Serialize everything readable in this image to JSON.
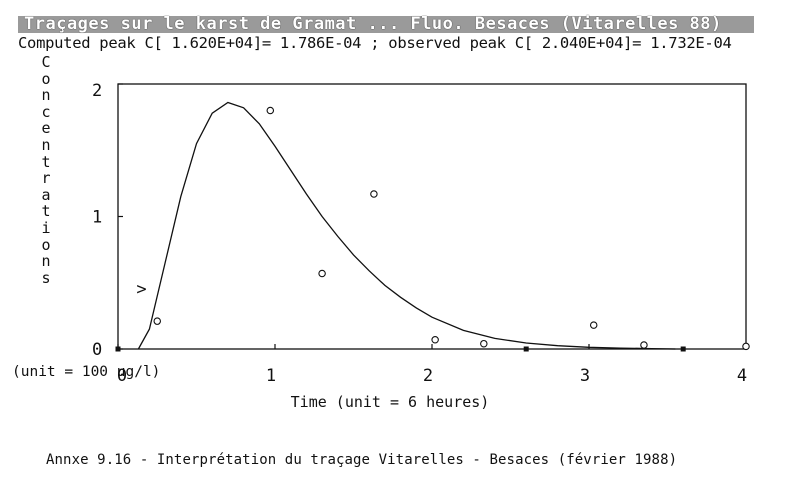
{
  "header": {
    "title": "Traçages sur le karst de Gramat ... Fluo. Besaces (Vitarelles 88)",
    "subtitle": "Computed peak C[ 1.620E+04]= 1.786E-04 ; observed peak C[ 2.040E+04]= 1.732E-04"
  },
  "chart_data": {
    "type": "scatter",
    "xlabel": "Time (unit = 6 heures)",
    "ylabel": "Concentrations",
    "ylabel_unit": "(unit = 100 ug/l)",
    "xlim": [
      0,
      4
    ],
    "ylim": [
      0,
      2
    ],
    "x_ticks": [
      0,
      1,
      2,
      3,
      4
    ],
    "y_ticks": [
      0,
      1,
      2
    ],
    "grid": false,
    "series": [
      {
        "kind": "observed",
        "marker": "circle",
        "points": [
          [
            0.25,
            0.21
          ],
          [
            0.97,
            1.8
          ],
          [
            1.3,
            0.57
          ],
          [
            1.63,
            1.17
          ],
          [
            2.02,
            0.07
          ],
          [
            2.33,
            0.04
          ],
          [
            3.03,
            0.18
          ],
          [
            3.35,
            0.03
          ],
          [
            4.0,
            0.02
          ]
        ]
      },
      {
        "kind": "computed",
        "line": "solid",
        "points": [
          [
            0.13,
            0.0
          ],
          [
            0.2,
            0.15
          ],
          [
            0.3,
            0.65
          ],
          [
            0.4,
            1.15
          ],
          [
            0.5,
            1.55
          ],
          [
            0.6,
            1.78
          ],
          [
            0.7,
            1.86
          ],
          [
            0.8,
            1.82
          ],
          [
            0.9,
            1.7
          ],
          [
            1.0,
            1.53
          ],
          [
            1.1,
            1.35
          ],
          [
            1.2,
            1.17
          ],
          [
            1.3,
            1.0
          ],
          [
            1.4,
            0.85
          ],
          [
            1.5,
            0.71
          ],
          [
            1.6,
            0.59
          ],
          [
            1.7,
            0.48
          ],
          [
            1.8,
            0.39
          ],
          [
            1.9,
            0.31
          ],
          [
            2.0,
            0.24
          ],
          [
            2.2,
            0.14
          ],
          [
            2.4,
            0.08
          ],
          [
            2.6,
            0.045
          ],
          [
            2.8,
            0.025
          ],
          [
            3.0,
            0.013
          ],
          [
            3.2,
            0.007
          ],
          [
            3.4,
            0.003
          ],
          [
            3.55,
            0.0
          ]
        ]
      }
    ],
    "annotations": [
      ">"
    ],
    "baseline_markers_x": [
      0.0,
      2.6,
      3.6
    ]
  },
  "caption": "Annxe 9.16 - Interprétation du traçage Vitarelles - Besaces (février 1988)"
}
